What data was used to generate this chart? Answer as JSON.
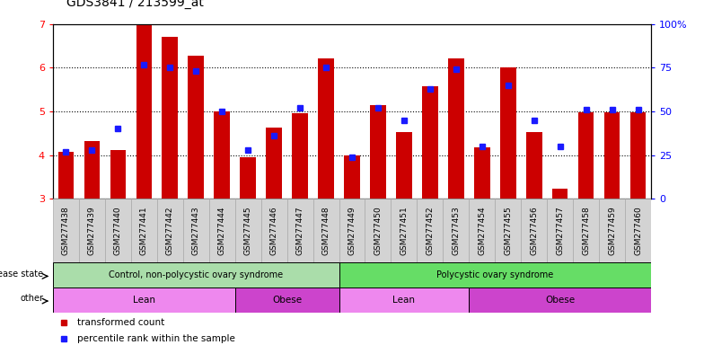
{
  "title": "GDS3841 / 213599_at",
  "samples": [
    "GSM277438",
    "GSM277439",
    "GSM277440",
    "GSM277441",
    "GSM277442",
    "GSM277443",
    "GSM277444",
    "GSM277445",
    "GSM277446",
    "GSM277447",
    "GSM277448",
    "GSM277449",
    "GSM277450",
    "GSM277451",
    "GSM277452",
    "GSM277453",
    "GSM277454",
    "GSM277455",
    "GSM277456",
    "GSM277457",
    "GSM277458",
    "GSM277459",
    "GSM277460"
  ],
  "bar_values": [
    4.07,
    4.32,
    4.12,
    7.0,
    6.7,
    6.27,
    5.0,
    3.95,
    4.62,
    4.95,
    6.22,
    4.0,
    5.15,
    4.52,
    5.57,
    6.22,
    4.17,
    6.01,
    4.52,
    3.22,
    4.97,
    4.97,
    4.97
  ],
  "percentile_values": [
    27,
    28,
    40,
    77,
    75,
    73,
    50,
    28,
    36,
    52,
    75,
    24,
    52,
    45,
    63,
    74,
    30,
    65,
    45,
    30,
    51,
    51,
    51
  ],
  "ylim": [
    3,
    7
  ],
  "right_ylim": [
    0,
    100
  ],
  "bar_color": "#cc0000",
  "dot_color": "#1a1aff",
  "disease_state_groups": [
    {
      "label": "Control, non-polycystic ovary syndrome",
      "start": 0,
      "end": 11,
      "color": "#aaddaa"
    },
    {
      "label": "Polycystic ovary syndrome",
      "start": 11,
      "end": 23,
      "color": "#66dd66"
    }
  ],
  "other_groups": [
    {
      "label": "Lean",
      "start": 0,
      "end": 7,
      "color": "#ee88ee"
    },
    {
      "label": "Obese",
      "start": 7,
      "end": 11,
      "color": "#cc44cc"
    },
    {
      "label": "Lean",
      "start": 11,
      "end": 16,
      "color": "#ee88ee"
    },
    {
      "label": "Obese",
      "start": 16,
      "end": 23,
      "color": "#cc44cc"
    }
  ],
  "legend_items": [
    {
      "label": "transformed count",
      "color": "#cc0000"
    },
    {
      "label": "percentile rank within the sample",
      "color": "#1a1aff"
    }
  ],
  "label_fontsize": 7,
  "tick_fontsize": 6.5,
  "title_fontsize": 10
}
